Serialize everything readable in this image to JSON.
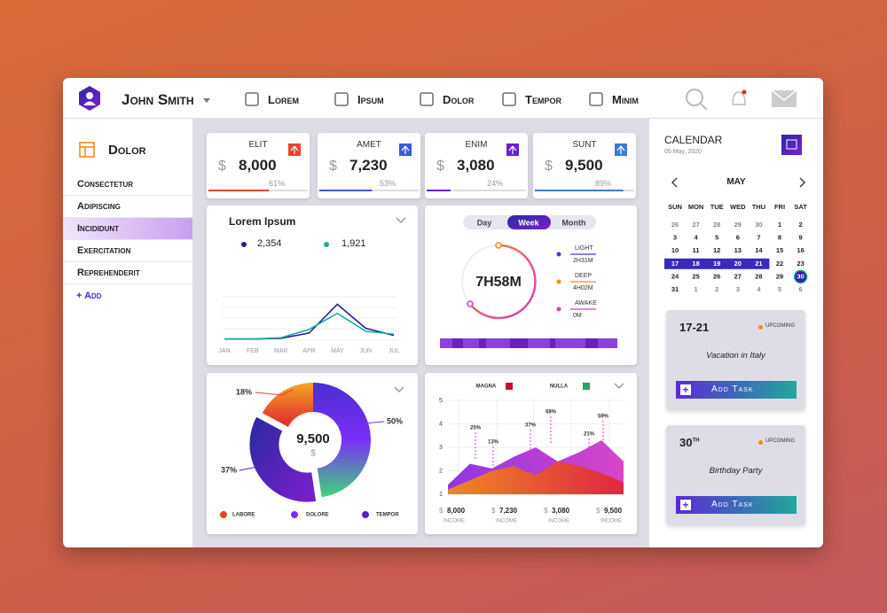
{
  "header": {
    "user": "John Smith",
    "nav": [
      "Lorem",
      "Ipsum",
      "Dolor",
      "Tempor",
      "Minim"
    ]
  },
  "sidebar": {
    "title": "Dolor",
    "items": [
      "Consectetur",
      "Adipiscing",
      "Incididunt",
      "Exercitation",
      "Reprehenderit"
    ],
    "active": 2,
    "add": "+ Add"
  },
  "stats": [
    {
      "label": "ELIT",
      "currency": "$",
      "amount": "8,000",
      "percent": 61,
      "percent_label": "61%",
      "color": "#e8452c"
    },
    {
      "label": "AMET",
      "currency": "$",
      "amount": "7,230",
      "percent": 53,
      "percent_label": "53%",
      "color": "#3a5bd9"
    },
    {
      "label": "ENIM",
      "currency": "$",
      "amount": "3,080",
      "percent": 24,
      "percent_label": "24%",
      "color": "#6a1fd0"
    },
    {
      "label": "SUNT",
      "currency": "$",
      "amount": "9,500",
      "percent": 89,
      "percent_label": "89%",
      "color": "#3a7bd5"
    }
  ],
  "line_chart": {
    "type": "line",
    "title": "Lorem Ipsum",
    "categories": [
      "JAN",
      "FEB",
      "MAR",
      "APR",
      "MAY",
      "JUN",
      "JUL"
    ],
    "ylim": [
      0,
      80
    ],
    "series": [
      {
        "name": "2,354",
        "color": "#23238e",
        "values": [
          2,
          2,
          3,
          12,
          60,
          20,
          8
        ]
      },
      {
        "name": "1,921",
        "color": "#1fa99a",
        "values": [
          2,
          2,
          4,
          18,
          45,
          15,
          10
        ]
      }
    ]
  },
  "timer": {
    "tabs": [
      "Day",
      "Week",
      "Month"
    ],
    "active_tab": 1,
    "total": "7h58m",
    "legend": [
      {
        "name": "Light",
        "value": "2h31m",
        "color": "#5b2ad8"
      },
      {
        "name": "Deep",
        "value": "4h02m",
        "color": "#f28c1c"
      },
      {
        "name": "Awake",
        "value": "0m",
        "color": "#d63cc4"
      }
    ]
  },
  "donut": {
    "type": "pie",
    "center_value": "9,500",
    "center_unit": "$",
    "categories": [
      "Labore",
      "Dolore",
      "Tempor"
    ],
    "values": [
      18,
      50,
      37
    ],
    "value_labels": [
      "18%",
      "50%",
      "37%"
    ],
    "colors": [
      "#e8452c",
      "#7b2ff7",
      "#5b1fc0"
    ]
  },
  "area_chart": {
    "type": "area",
    "ylim": [
      1,
      5
    ],
    "yticks": [
      1,
      2,
      3,
      4,
      5
    ],
    "series": [
      {
        "name": "Magna",
        "color": "#c8102e",
        "fill": [
          "#8a2be2",
          "#d63cc4"
        ],
        "values": [
          1.4,
          2.3,
          2.1,
          2.6,
          3.0,
          2.4,
          2.8,
          3.3,
          2.4
        ]
      },
      {
        "name": "Nulla",
        "color": "#2e9e6a",
        "fill": [
          "#f28c1c",
          "#e0243a"
        ],
        "values": [
          1.2,
          1.6,
          2.0,
          2.2,
          1.8,
          2.4,
          2.2,
          1.9,
          1.5
        ]
      }
    ],
    "annotations": [
      "25%",
      "13%",
      "37%",
      "68%",
      "21%",
      "59%"
    ],
    "totals": [
      {
        "currency": "$",
        "amount": "8,000",
        "label": "INCOME"
      },
      {
        "currency": "$",
        "amount": "7,230",
        "label": "INCOME"
      },
      {
        "currency": "$",
        "amount": "3,080",
        "label": "INCOME"
      },
      {
        "currency": "$",
        "amount": "9,500",
        "label": "INCOME"
      }
    ]
  },
  "calendar": {
    "title": "Calendar",
    "date": "05 May, 2020",
    "month": "May",
    "weekdays": [
      "Sun",
      "Mon",
      "Tue",
      "Wed",
      "Thu",
      "Fri",
      "Sat"
    ],
    "days": [
      [
        26,
        27,
        28,
        29,
        30,
        1,
        2
      ],
      [
        3,
        4,
        5,
        6,
        7,
        8,
        9
      ],
      [
        10,
        11,
        12,
        13,
        14,
        15,
        16
      ],
      [
        17,
        18,
        19,
        20,
        21,
        22,
        23
      ],
      [
        24,
        25,
        26,
        27,
        28,
        29,
        30
      ],
      [
        31,
        1,
        2,
        3,
        4,
        5,
        6
      ]
    ],
    "selected_range": [
      17,
      21
    ],
    "today": 30
  },
  "events": [
    {
      "date": "17-21",
      "status": "Upcoming",
      "title": "Vacation in Italy",
      "button": "Add Task"
    },
    {
      "date": "30",
      "suffix": "th",
      "status": "Upcoming",
      "title": "Birthday Party",
      "button": "Add Task"
    }
  ]
}
